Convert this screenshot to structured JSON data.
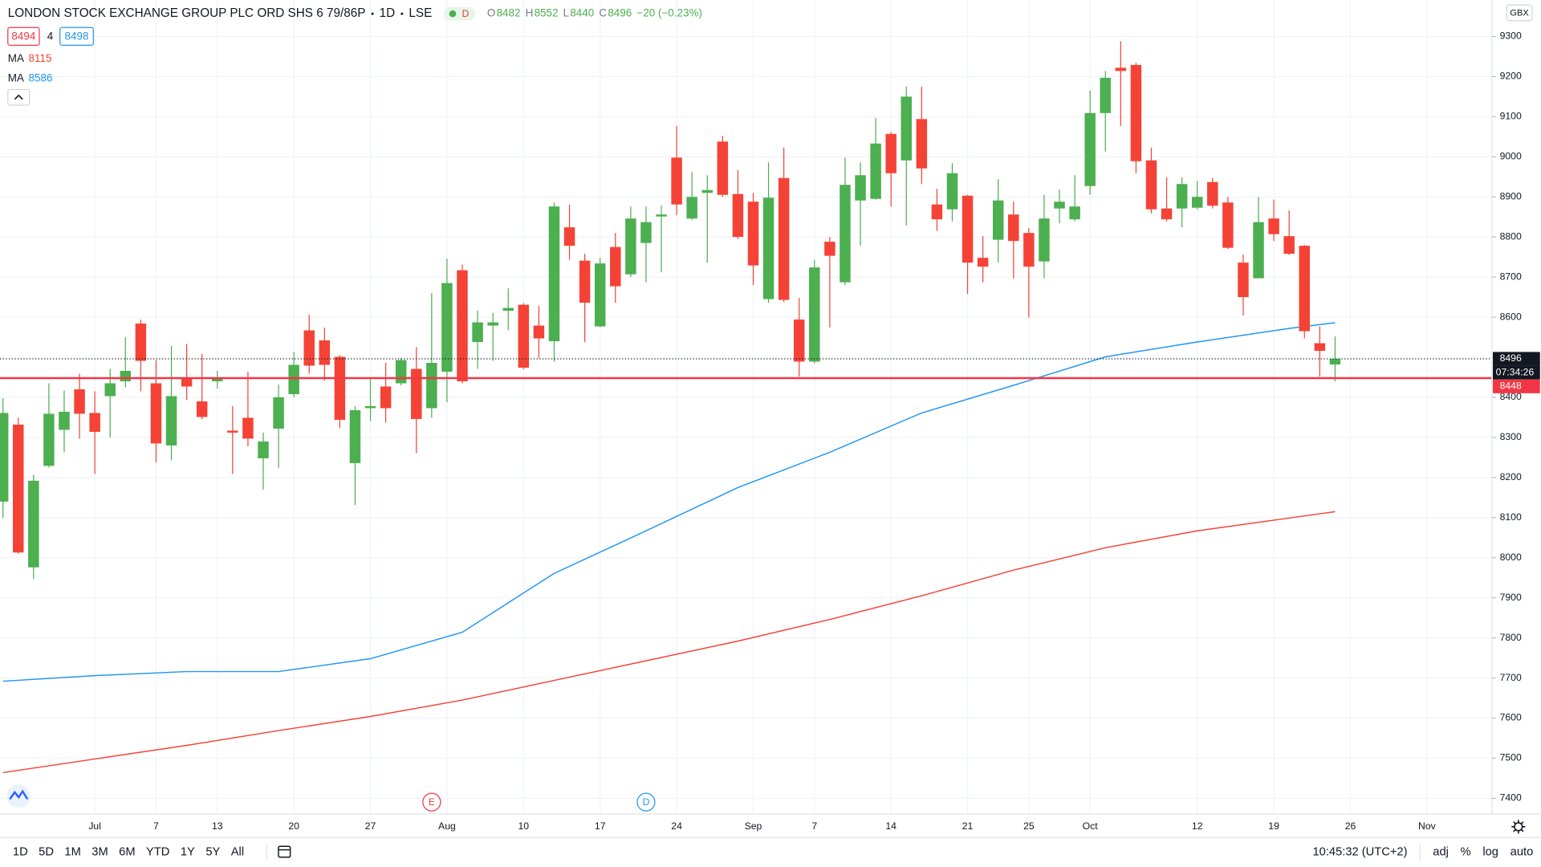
{
  "chart_data": {
    "type": "candlestick",
    "title": "LONDON STOCK EXCHANGE GROUP PLC ORD SHS 6 79/86P",
    "interval": "1D",
    "exchange": "LSE",
    "status_badge": "D",
    "ohlc_labels": [
      "O",
      "H",
      "L",
      "C"
    ],
    "change": "−20 (−0.23%)",
    "currency": "GBX",
    "quote": {
      "bid": 8494,
      "spread": 4,
      "ask": 8498
    },
    "countdown": "07:34:26",
    "up_color": "#4caf50",
    "down_color": "#f44336",
    "grid": true,
    "categories": [
      null,
      null,
      null,
      null,
      null,
      null,
      "Jul",
      null,
      null,
      null,
      "7",
      null,
      null,
      null,
      "13",
      null,
      null,
      null,
      null,
      "20",
      null,
      null,
      null,
      null,
      "27",
      null,
      null,
      null,
      null,
      "Aug",
      null,
      null,
      null,
      null,
      "10",
      null,
      null,
      null,
      null,
      "17",
      null,
      null,
      null,
      null,
      "24",
      null,
      null,
      null,
      null,
      "Sep",
      null,
      null,
      null,
      "7",
      null,
      null,
      null,
      null,
      "14",
      null,
      null,
      null,
      null,
      "21",
      null,
      null,
      null,
      "25",
      null,
      null,
      null,
      "Oct",
      null,
      null,
      null,
      null,
      null,
      null,
      "12",
      null,
      null,
      null,
      null,
      "19",
      null,
      null,
      null,
      null,
      "26",
      null,
      null,
      null,
      null,
      "Nov"
    ],
    "open": [
      8140,
      8332,
      7976,
      8229,
      8319,
      8420,
      8361,
      8403,
      8440,
      8584,
      8435,
      8280,
      8447,
      8390,
      8440,
      8317,
      8349,
      8248,
      8322,
      8408,
      8567,
      8542,
      8501,
      8236,
      8373,
      8427,
      8435,
      8471,
      8373,
      8464,
      8717,
      8538,
      8579,
      8616,
      8631,
      8579,
      8540,
      8824,
      8741,
      8577,
      8775,
      8707,
      8785,
      8851,
      8998,
      8846,
      8910,
      9038,
      8907,
      8888,
      8645,
      8947,
      8594,
      8489,
      8788,
      8687,
      8891,
      8895,
      9057,
      8991,
      9094,
      8881,
      8869,
      8903,
      8748,
      8793,
      8856,
      8810,
      8739,
      8871,
      8844,
      8927,
      9109,
      9222,
      9229,
      8991,
      8871,
      8871,
      8873,
      8937,
      8886,
      8736,
      8697,
      8846,
      8802,
      8778,
      8535,
      8482,
      null,
      null,
      null,
      null,
      null,
      null
    ],
    "high": [
      8398,
      8349,
      8207,
      8435,
      8417,
      8459,
      8415,
      8471,
      8550,
      8594,
      8493,
      8528,
      8533,
      8508,
      8466,
      8378,
      8464,
      8312,
      8432,
      8513,
      8606,
      8574,
      8505,
      8378,
      8447,
      8486,
      8498,
      8525,
      8660,
      8746,
      8731,
      8616,
      8611,
      8672,
      8635,
      8628,
      8886,
      8881,
      8758,
      8748,
      8810,
      8876,
      8876,
      8878,
      9077,
      8962,
      8954,
      9052,
      8967,
      8910,
      8986,
      9023,
      8648,
      8743,
      8800,
      8998,
      8986,
      9097,
      9062,
      9175,
      9175,
      8920,
      8984,
      8905,
      8802,
      8944,
      8888,
      8822,
      8905,
      8918,
      8954,
      9165,
      9214,
      9288,
      9234,
      9023,
      8949,
      8949,
      8940,
      8947,
      8900,
      8756,
      8900,
      8893,
      8866,
      8780,
      8577,
      8552,
      null,
      null,
      null,
      null,
      null,
      null
    ],
    "low": [
      8099,
      8010,
      7947,
      8225,
      8263,
      8297,
      8209,
      8300,
      8425,
      8415,
      8238,
      8243,
      8393,
      8345,
      8422,
      8209,
      8278,
      8170,
      8224,
      8400,
      8459,
      8442,
      8324,
      8131,
      8341,
      8337,
      8430,
      8261,
      8349,
      8388,
      8435,
      8471,
      8491,
      8567,
      8470,
      8498,
      8489,
      8743,
      8538,
      8575,
      8636,
      8700,
      8687,
      8712,
      8854,
      8842,
      8736,
      8900,
      8795,
      8680,
      8636,
      8638,
      8452,
      8485,
      8574,
      8680,
      8778,
      8893,
      8876,
      8829,
      8932,
      8815,
      8839,
      8658,
      8687,
      8736,
      8697,
      8599,
      8697,
      8834,
      8839,
      8905,
      9013,
      9077,
      8959,
      8859,
      8839,
      8824,
      8869,
      8871,
      8770,
      8604,
      8697,
      8790,
      8755,
      8547,
      8452,
      8440,
      null,
      null,
      null,
      null,
      null,
      null
    ],
    "close": [
      8361,
      8013,
      8192,
      8359,
      8364,
      8359,
      8314,
      8435,
      8466,
      8491,
      8285,
      8403,
      8427,
      8351,
      8449,
      8312,
      8297,
      8290,
      8400,
      8481,
      8479,
      8481,
      8344,
      8368,
      8378,
      8373,
      8493,
      8346,
      8486,
      8685,
      8440,
      8587,
      8587,
      8623,
      8474,
      8547,
      8876,
      8778,
      8636,
      8734,
      8677,
      8846,
      8837,
      8856,
      8881,
      8900,
      8917,
      8905,
      8800,
      8729,
      8898,
      8643,
      8489,
      8724,
      8753,
      8930,
      8954,
      9033,
      8959,
      9150,
      8971,
      8844,
      8959,
      8736,
      8726,
      8891,
      8790,
      8726,
      8846,
      8888,
      8876,
      9109,
      9197,
      9214,
      8989,
      8869,
      8844,
      8932,
      8900,
      8878,
      8773,
      8650,
      8837,
      8807,
      8758,
      8565,
      8516,
      8496,
      null,
      null,
      null,
      null,
      null,
      null
    ],
    "moving_averages": [
      {
        "name": "MA",
        "color": "#f44336",
        "x": [
          0,
          6,
          12,
          18,
          24,
          30,
          36,
          42,
          48,
          54,
          60,
          66,
          72,
          78,
          84,
          87
        ],
        "values": [
          7464,
          7498,
          7532,
          7569,
          7604,
          7645,
          7694,
          7743,
          7792,
          7846,
          7905,
          7969,
          8025,
          8067,
          8099,
          8115
        ]
      },
      {
        "name": "MA",
        "color": "#2196f3",
        "x": [
          0,
          6,
          12,
          18,
          24,
          30,
          36,
          42,
          48,
          54,
          60,
          66,
          72,
          78,
          84,
          87
        ],
        "values": [
          7692,
          7706,
          7716,
          7716,
          7748,
          7814,
          7961,
          8067,
          8175,
          8263,
          8361,
          8430,
          8501,
          8538,
          8572,
          8586
        ]
      }
    ],
    "horizontal_line": {
      "value": 8448,
      "color": "#f23645"
    },
    "events": [
      {
        "x": 28,
        "label": "E",
        "color": "#f23645"
      },
      {
        "x": 42,
        "label": "D",
        "color": "#2196f3"
      }
    ],
    "ylim": [
      7361,
      9391
    ],
    "yticks": [
      7400,
      7500,
      7600,
      7700,
      7800,
      7900,
      8000,
      8100,
      8200,
      8300,
      8400,
      8500,
      8600,
      8700,
      8800,
      8900,
      9000,
      9100,
      9200,
      9300
    ]
  },
  "toolbar": {
    "ranges": [
      "1D",
      "5D",
      "1M",
      "3M",
      "6M",
      "YTD",
      "1Y",
      "5Y",
      "All"
    ],
    "clock": "10:45:32 (UTC+2)",
    "scale_options": [
      "adj",
      "%",
      "log",
      "auto"
    ]
  }
}
